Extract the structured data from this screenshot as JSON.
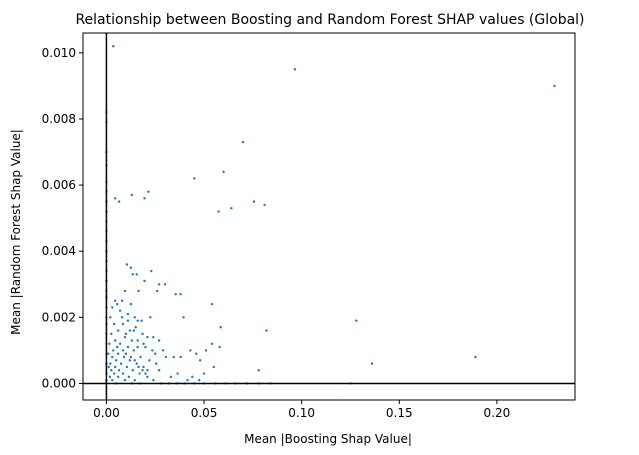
{
  "chart_data": {
    "type": "scatter",
    "title": "Relationship between Boosting and Random Forest SHAP values (Global)",
    "xlabel": "Mean |Boosting Shap Value|",
    "ylabel": "Mean |Random Forest Shap Value|",
    "xlim": [
      -0.012,
      0.24
    ],
    "ylim": [
      -0.0005,
      0.0106
    ],
    "xticks": [
      0.0,
      0.05,
      0.1,
      0.15,
      0.2
    ],
    "xtick_labels": [
      "0.00",
      "0.05",
      "0.10",
      "0.15",
      "0.20"
    ],
    "yticks": [
      0.0,
      0.002,
      0.004,
      0.006,
      0.008,
      0.01
    ],
    "ytick_labels": [
      "0.000",
      "0.002",
      "0.004",
      "0.006",
      "0.008",
      "0.010"
    ],
    "reference_lines": {
      "x": 0,
      "y": 0
    },
    "grid": false,
    "marker_color": "#1f77b4",
    "points": [
      [
        0.0035,
        0.0102
      ],
      [
        0.0965,
        0.0095
      ],
      [
        0.2295,
        0.009
      ],
      [
        0.07,
        0.0073
      ],
      [
        0.0,
        0.0082
      ],
      [
        0.0,
        0.0079
      ],
      [
        0.0,
        0.007
      ],
      [
        0.0,
        0.0066
      ],
      [
        0.0,
        0.0061
      ],
      [
        0.0,
        0.0058
      ],
      [
        0.0,
        0.0055
      ],
      [
        0.0,
        0.0052
      ],
      [
        0.0,
        0.0049
      ],
      [
        0.0,
        0.0046
      ],
      [
        0.0,
        0.0043
      ],
      [
        0.0,
        0.004
      ],
      [
        0.0,
        0.0037
      ],
      [
        0.0,
        0.0034
      ],
      [
        0.0,
        0.0031
      ],
      [
        0.0,
        0.0028
      ],
      [
        0.0,
        0.0026
      ],
      [
        0.0,
        0.0023
      ],
      [
        0.0,
        0.002
      ],
      [
        0.0,
        0.0018
      ],
      [
        0.0,
        0.0015
      ],
      [
        0.0,
        0.0012
      ],
      [
        0.0,
        0.0009
      ],
      [
        0.0,
        0.0006
      ],
      [
        0.0,
        0.0003
      ],
      [
        0.0,
        0.0001
      ],
      [
        0.045,
        0.0062
      ],
      [
        0.06,
        0.0064
      ],
      [
        0.0755,
        0.0055
      ],
      [
        0.081,
        0.0054
      ],
      [
        0.064,
        0.0053
      ],
      [
        0.0575,
        0.0052
      ],
      [
        0.013,
        0.0057
      ],
      [
        0.0195,
        0.0056
      ],
      [
        0.0215,
        0.0058
      ],
      [
        0.0045,
        0.0056
      ],
      [
        0.0065,
        0.0055
      ],
      [
        0.0105,
        0.0036
      ],
      [
        0.0125,
        0.0035
      ],
      [
        0.0135,
        0.0033
      ],
      [
        0.0155,
        0.0033
      ],
      [
        0.023,
        0.0034
      ],
      [
        0.0095,
        0.0028
      ],
      [
        0.0195,
        0.0031
      ],
      [
        0.008,
        0.0025
      ],
      [
        0.0055,
        0.0024
      ],
      [
        0.027,
        0.003
      ],
      [
        0.03,
        0.003
      ],
      [
        0.0355,
        0.0027
      ],
      [
        0.038,
        0.0027
      ],
      [
        0.026,
        0.0028
      ],
      [
        0.0165,
        0.0028
      ],
      [
        0.0125,
        0.0024
      ],
      [
        0.0045,
        0.0025
      ],
      [
        0.003,
        0.0023
      ],
      [
        0.007,
        0.0022
      ],
      [
        0.011,
        0.0021
      ],
      [
        0.0145,
        0.002
      ],
      [
        0.018,
        0.0019
      ],
      [
        0.0225,
        0.002
      ],
      [
        0.002,
        0.002
      ],
      [
        0.004,
        0.0018
      ],
      [
        0.0085,
        0.0018
      ],
      [
        0.015,
        0.0017
      ],
      [
        0.006,
        0.0016
      ],
      [
        0.012,
        0.0016
      ],
      [
        0.0185,
        0.0015
      ],
      [
        0.0025,
        0.0015
      ],
      [
        0.0095,
        0.0014
      ],
      [
        0.0045,
        0.0013
      ],
      [
        0.016,
        0.0013
      ],
      [
        0.007,
        0.0012
      ],
      [
        0.011,
        0.0011
      ],
      [
        0.02,
        0.0011
      ],
      [
        0.0035,
        0.001
      ],
      [
        0.014,
        0.001
      ],
      [
        0.006,
        0.0009
      ],
      [
        0.025,
        0.0009
      ],
      [
        0.009,
        0.0008
      ],
      [
        0.0175,
        0.0008
      ],
      [
        0.003,
        0.0008
      ],
      [
        0.012,
        0.0007
      ],
      [
        0.005,
        0.0007
      ],
      [
        0.022,
        0.0007
      ],
      [
        0.0075,
        0.0006
      ],
      [
        0.0155,
        0.0006
      ],
      [
        0.002,
        0.0006
      ],
      [
        0.0105,
        0.0005
      ],
      [
        0.0045,
        0.0005
      ],
      [
        0.019,
        0.0005
      ],
      [
        0.0065,
        0.0004
      ],
      [
        0.0135,
        0.0004
      ],
      [
        0.0025,
        0.0004
      ],
      [
        0.0085,
        0.0003
      ],
      [
        0.017,
        0.0003
      ],
      [
        0.004,
        0.0003
      ],
      [
        0.0115,
        0.0002
      ],
      [
        0.021,
        0.0002
      ],
      [
        0.006,
        0.0002
      ],
      [
        0.0145,
        0.0001
      ],
      [
        0.003,
        0.0001
      ],
      [
        0.0095,
        0.0001
      ],
      [
        0.024,
        0.0001
      ],
      [
        0.0175,
        0.0
      ],
      [
        0.005,
        0.0
      ],
      [
        0.013,
        0.0
      ],
      [
        0.028,
        0.0
      ],
      [
        0.032,
        0.0
      ],
      [
        0.036,
        0.0
      ],
      [
        0.04,
        0.0
      ],
      [
        0.045,
        0.0
      ],
      [
        0.05,
        0.0
      ],
      [
        0.056,
        0.0
      ],
      [
        0.061,
        0.0
      ],
      [
        0.066,
        0.0
      ],
      [
        0.072,
        0.0
      ],
      [
        0.078,
        0.0
      ],
      [
        0.084,
        0.0
      ],
      [
        0.125,
        0.0
      ],
      [
        0.01,
        0.0015
      ],
      [
        0.014,
        0.0016
      ],
      [
        0.016,
        0.0019
      ],
      [
        0.021,
        0.0014
      ],
      [
        0.024,
        0.0014
      ],
      [
        0.027,
        0.0013
      ],
      [
        0.029,
        0.001
      ],
      [
        0.0305,
        0.0008
      ],
      [
        0.0345,
        0.0008
      ],
      [
        0.038,
        0.0008
      ],
      [
        0.043,
        0.001
      ],
      [
        0.046,
        0.0009
      ],
      [
        0.048,
        0.0007
      ],
      [
        0.051,
        0.001
      ],
      [
        0.054,
        0.0012
      ],
      [
        0.058,
        0.0011
      ],
      [
        0.0395,
        0.002
      ],
      [
        0.054,
        0.0024
      ],
      [
        0.0585,
        0.0017
      ],
      [
        0.082,
        0.0016
      ],
      [
        0.128,
        0.0019
      ],
      [
        0.136,
        0.0006
      ],
      [
        0.189,
        0.0008
      ],
      [
        0.078,
        0.0004
      ],
      [
        0.055,
        0.0005
      ],
      [
        0.05,
        0.0003
      ],
      [
        0.044,
        0.0002
      ],
      [
        0.033,
        0.0002
      ],
      [
        0.027,
        0.0004
      ],
      [
        0.0365,
        0.0003
      ],
      [
        0.0415,
        0.0001
      ],
      [
        0.0475,
        0.0001
      ],
      [
        0.019,
        0.0012
      ],
      [
        0.0235,
        0.001
      ],
      [
        0.0255,
        0.0006
      ],
      [
        0.021,
        0.0004
      ],
      [
        0.016,
        0.0011
      ],
      [
        0.008,
        0.002
      ],
      [
        0.011,
        0.0019
      ],
      [
        0.013,
        0.0013
      ],
      [
        0.0015,
        0.0012
      ],
      [
        0.001,
        0.0009
      ],
      [
        0.0012,
        0.0005
      ],
      [
        0.0018,
        0.0002
      ],
      [
        0.0055,
        0.0011
      ],
      [
        0.0085,
        0.001
      ],
      [
        0.01,
        0.0009
      ],
      [
        0.0125,
        0.0008
      ],
      [
        0.0145,
        0.0007
      ],
      [
        0.0165,
        0.0005
      ],
      [
        0.0185,
        0.0004
      ],
      [
        0.02,
        0.0003
      ]
    ]
  }
}
